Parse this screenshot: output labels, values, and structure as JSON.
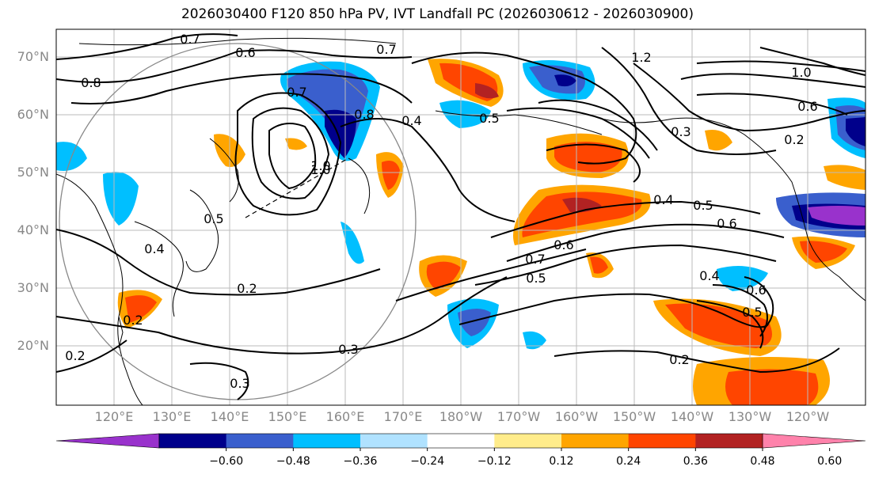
{
  "title": "2026030400 F120 850 hPa PV, IVT Landfall PC (2026030612 - 2026030900)",
  "lat_labels": [
    "70°N",
    "60°N",
    "50°N",
    "40°N",
    "30°N",
    "20°N"
  ],
  "lon_labels": [
    "120°E",
    "130°E",
    "140°E",
    "150°E",
    "160°E",
    "170°E",
    "180°W",
    "170°W",
    "160°W",
    "150°W",
    "140°W",
    "130°W",
    "120°W"
  ],
  "contour_labels": [
    "0.7",
    "0.6",
    "0.7",
    "0.7",
    "1.0",
    "0.8",
    "0.8",
    "1.2",
    "1.0",
    "0.6",
    "0.4",
    "0.5",
    "0.3",
    "0.2",
    "0.4",
    "0.5",
    "0.6",
    "0.7",
    "0.6",
    "0.5",
    "0.4",
    "0.6",
    "0.5",
    "0.2",
    "0.3",
    "0.3",
    "0.2",
    "0.2",
    "0.4",
    "0.5",
    "1.0",
    "0.2"
  ],
  "colorbar": {
    "ticks": [
      "−0.60",
      "−0.48",
      "−0.36",
      "−0.24",
      "−0.12",
      "0.12",
      "0.24",
      "0.36",
      "0.48",
      "0.60"
    ],
    "colors": [
      "#9932cc",
      "#00008b",
      "#3a5fcd",
      "#00bfff",
      "#b0e2ff",
      "#ffffff",
      "#ffec8b",
      "#ffa500",
      "#ff4500",
      "#b22222",
      "#ff82ab"
    ]
  },
  "fill_colors": {
    "neg_strong": "#3a5fcd",
    "neg_mid": "#00bfff",
    "neg_dark": "#00008b",
    "neg_purple": "#9932cc",
    "pos_light": "#ffec8b",
    "pos_mid": "#ffa500",
    "pos_strong": "#ff4500",
    "pos_dark": "#b22222"
  }
}
